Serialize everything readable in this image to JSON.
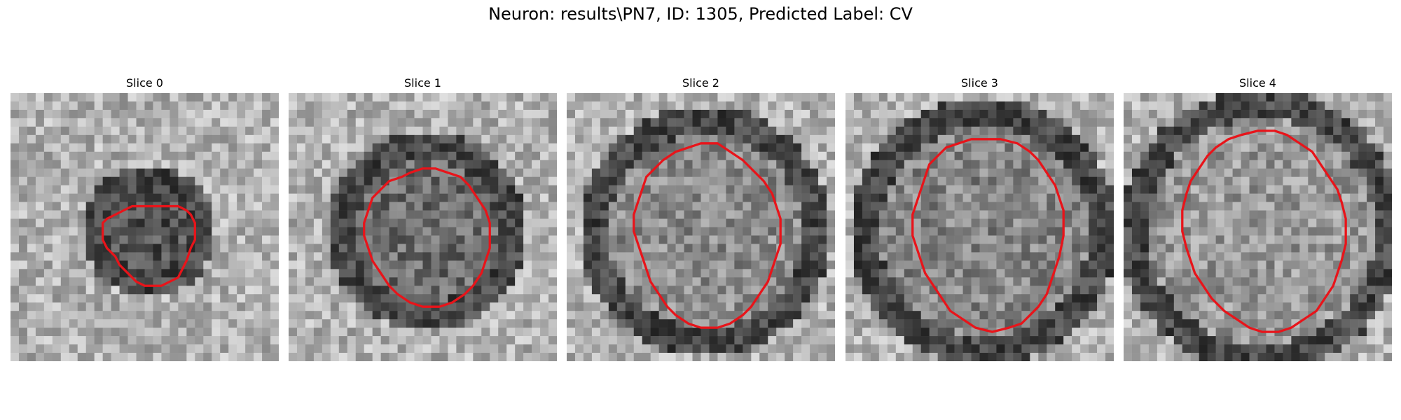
{
  "figure": {
    "title": "Neuron: results\\PN7, ID: 1305, Predicted Label: CV"
  },
  "panels": [
    {
      "title": "Slice 0",
      "contour": [
        [
          33,
          27
        ],
        [
          29,
          27
        ],
        [
          27,
          28
        ],
        [
          25,
          29
        ],
        [
          23,
          30
        ],
        [
          22,
          31
        ],
        [
          22,
          35
        ],
        [
          23,
          37
        ],
        [
          25,
          39
        ],
        [
          26,
          41
        ],
        [
          28,
          43
        ],
        [
          30,
          45
        ],
        [
          32,
          46
        ],
        [
          36,
          46
        ],
        [
          38,
          45
        ],
        [
          40,
          44
        ],
        [
          41,
          42
        ],
        [
          42,
          40
        ],
        [
          43,
          37
        ],
        [
          44,
          35
        ],
        [
          44,
          31
        ],
        [
          43,
          29
        ],
        [
          42,
          28
        ],
        [
          40,
          27
        ],
        [
          38,
          27
        ],
        [
          36,
          27
        ]
      ]
    },
    {
      "title": "Slice 1",
      "contour": [
        [
          32,
          18
        ],
        [
          29,
          19
        ],
        [
          27,
          20
        ],
        [
          24,
          21
        ],
        [
          22,
          23
        ],
        [
          20,
          25
        ],
        [
          19,
          28
        ],
        [
          18,
          31
        ],
        [
          18,
          34
        ],
        [
          19,
          37
        ],
        [
          20,
          40
        ],
        [
          22,
          43
        ],
        [
          24,
          46
        ],
        [
          26,
          48
        ],
        [
          29,
          50
        ],
        [
          32,
          51
        ],
        [
          36,
          51
        ],
        [
          39,
          50
        ],
        [
          42,
          48
        ],
        [
          44,
          46
        ],
        [
          46,
          43
        ],
        [
          47,
          40
        ],
        [
          48,
          37
        ],
        [
          48,
          31
        ],
        [
          47,
          28
        ],
        [
          45,
          25
        ],
        [
          43,
          22
        ],
        [
          41,
          20
        ],
        [
          38,
          19
        ],
        [
          35,
          18
        ]
      ]
    },
    {
      "title": "Slice 2",
      "contour": [
        [
          32,
          12
        ],
        [
          29,
          13
        ],
        [
          26,
          14
        ],
        [
          23,
          16
        ],
        [
          21,
          18
        ],
        [
          19,
          20
        ],
        [
          18,
          23
        ],
        [
          17,
          26
        ],
        [
          16,
          29
        ],
        [
          16,
          33
        ],
        [
          17,
          36
        ],
        [
          18,
          39
        ],
        [
          19,
          42
        ],
        [
          20,
          45
        ],
        [
          22,
          48
        ],
        [
          24,
          51
        ],
        [
          26,
          53
        ],
        [
          29,
          55
        ],
        [
          32,
          56
        ],
        [
          36,
          56
        ],
        [
          39,
          55
        ],
        [
          42,
          53
        ],
        [
          44,
          51
        ],
        [
          46,
          48
        ],
        [
          48,
          45
        ],
        [
          49,
          42
        ],
        [
          50,
          39
        ],
        [
          51,
          36
        ],
        [
          51,
          30
        ],
        [
          50,
          27
        ],
        [
          49,
          24
        ],
        [
          47,
          21
        ],
        [
          45,
          19
        ],
        [
          42,
          16
        ],
        [
          39,
          14
        ],
        [
          36,
          12
        ]
      ]
    },
    {
      "title": "Slice 3",
      "contour": [
        [
          30,
          11
        ],
        [
          27,
          12
        ],
        [
          24,
          13
        ],
        [
          22,
          15
        ],
        [
          20,
          17
        ],
        [
          19,
          20
        ],
        [
          18,
          23
        ],
        [
          17,
          26
        ],
        [
          16,
          29
        ],
        [
          16,
          34
        ],
        [
          17,
          37
        ],
        [
          18,
          40
        ],
        [
          19,
          43
        ],
        [
          21,
          46
        ],
        [
          23,
          49
        ],
        [
          25,
          52
        ],
        [
          28,
          54
        ],
        [
          31,
          56
        ],
        [
          35,
          57
        ],
        [
          39,
          56
        ],
        [
          42,
          55
        ],
        [
          44,
          53
        ],
        [
          46,
          51
        ],
        [
          48,
          48
        ],
        [
          49,
          45
        ],
        [
          50,
          42
        ],
        [
          51,
          39
        ],
        [
          52,
          34
        ],
        [
          52,
          28
        ],
        [
          51,
          25
        ],
        [
          50,
          22
        ],
        [
          48,
          19
        ],
        [
          46,
          16
        ],
        [
          44,
          14
        ],
        [
          41,
          12
        ],
        [
          37,
          11
        ],
        [
          34,
          11
        ]
      ]
    },
    {
      "title": "Slice 4",
      "contour": [
        [
          32,
          9
        ],
        [
          28,
          10
        ],
        [
          25,
          11
        ],
        [
          22,
          13
        ],
        [
          20,
          15
        ],
        [
          18,
          18
        ],
        [
          16,
          21
        ],
        [
          15,
          24
        ],
        [
          14,
          28
        ],
        [
          14,
          33
        ],
        [
          15,
          37
        ],
        [
          16,
          40
        ],
        [
          17,
          43
        ],
        [
          19,
          46
        ],
        [
          21,
          49
        ],
        [
          24,
          52
        ],
        [
          27,
          54
        ],
        [
          30,
          56
        ],
        [
          33,
          57
        ],
        [
          37,
          57
        ],
        [
          40,
          56
        ],
        [
          43,
          54
        ],
        [
          46,
          52
        ],
        [
          48,
          49
        ],
        [
          50,
          46
        ],
        [
          51,
          43
        ],
        [
          52,
          40
        ],
        [
          53,
          36
        ],
        [
          53,
          30
        ],
        [
          52,
          26
        ],
        [
          51,
          23
        ],
        [
          49,
          20
        ],
        [
          47,
          17
        ],
        [
          45,
          14
        ],
        [
          42,
          12
        ],
        [
          39,
          10
        ],
        [
          36,
          9
        ]
      ]
    }
  ]
}
